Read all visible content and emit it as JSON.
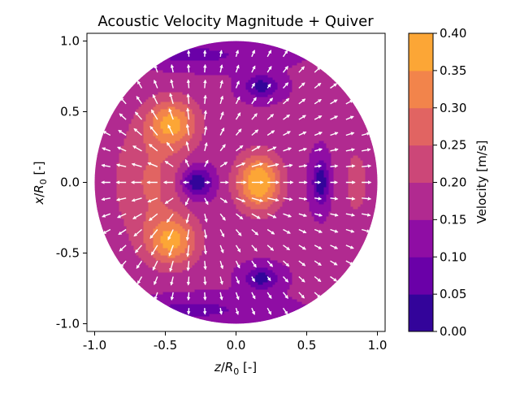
{
  "chart_data": {
    "type": "contour-quiver",
    "title": "Acoustic Velocity Magnitude + Quiver",
    "xlabel": "z/R0 [-]",
    "ylabel": "x/R0 [-]",
    "xlim": [
      -1.05,
      1.05
    ],
    "ylim": [
      -1.05,
      1.05
    ],
    "xticks": [
      "-1.0",
      "-0.5",
      "0.0",
      "0.5",
      "1.0"
    ],
    "xtick_values": [
      -1.0,
      -0.5,
      0.0,
      0.5,
      1.0
    ],
    "yticks": [
      "1.0",
      "0.5",
      "0.0",
      "-0.5",
      "-1.0"
    ],
    "ytick_values": [
      1.0,
      0.5,
      0.0,
      -0.5,
      -1.0
    ],
    "domain": "unit disk",
    "colorbar": {
      "label": "Velocity [m/s]",
      "levels": [
        0.0,
        0.05,
        0.1,
        0.15,
        0.2,
        0.25,
        0.3,
        0.35,
        0.4
      ],
      "tick_labels": [
        "0.00",
        "0.05",
        "0.10",
        "0.15",
        "0.20",
        "0.25",
        "0.30",
        "0.35",
        "0.40"
      ],
      "colors": [
        "#33049a",
        "#6a00a8",
        "#8f0da4",
        "#b12a90",
        "#cc4778",
        "#e16462",
        "#f2844b",
        "#fca636",
        "#f6dc2a"
      ]
    },
    "features": [
      {
        "type": "minimum",
        "z": -0.28,
        "x": 0.0,
        "value": 0.0
      },
      {
        "type": "maximum",
        "z": 0.16,
        "x": 0.0,
        "value": 0.4
      },
      {
        "type": "local_max",
        "z": -0.45,
        "x": 0.4,
        "value": 0.35
      },
      {
        "type": "local_max",
        "z": -0.45,
        "x": -0.4,
        "value": 0.35
      },
      {
        "type": "local_min",
        "z": 0.18,
        "x": 0.68,
        "value": 0.02
      },
      {
        "type": "local_min",
        "z": 0.18,
        "x": -0.68,
        "value": 0.02
      },
      {
        "type": "local_min",
        "z": 0.6,
        "x": 0.0,
        "value": 0.02
      }
    ],
    "quiver_color": "#ffffff"
  }
}
